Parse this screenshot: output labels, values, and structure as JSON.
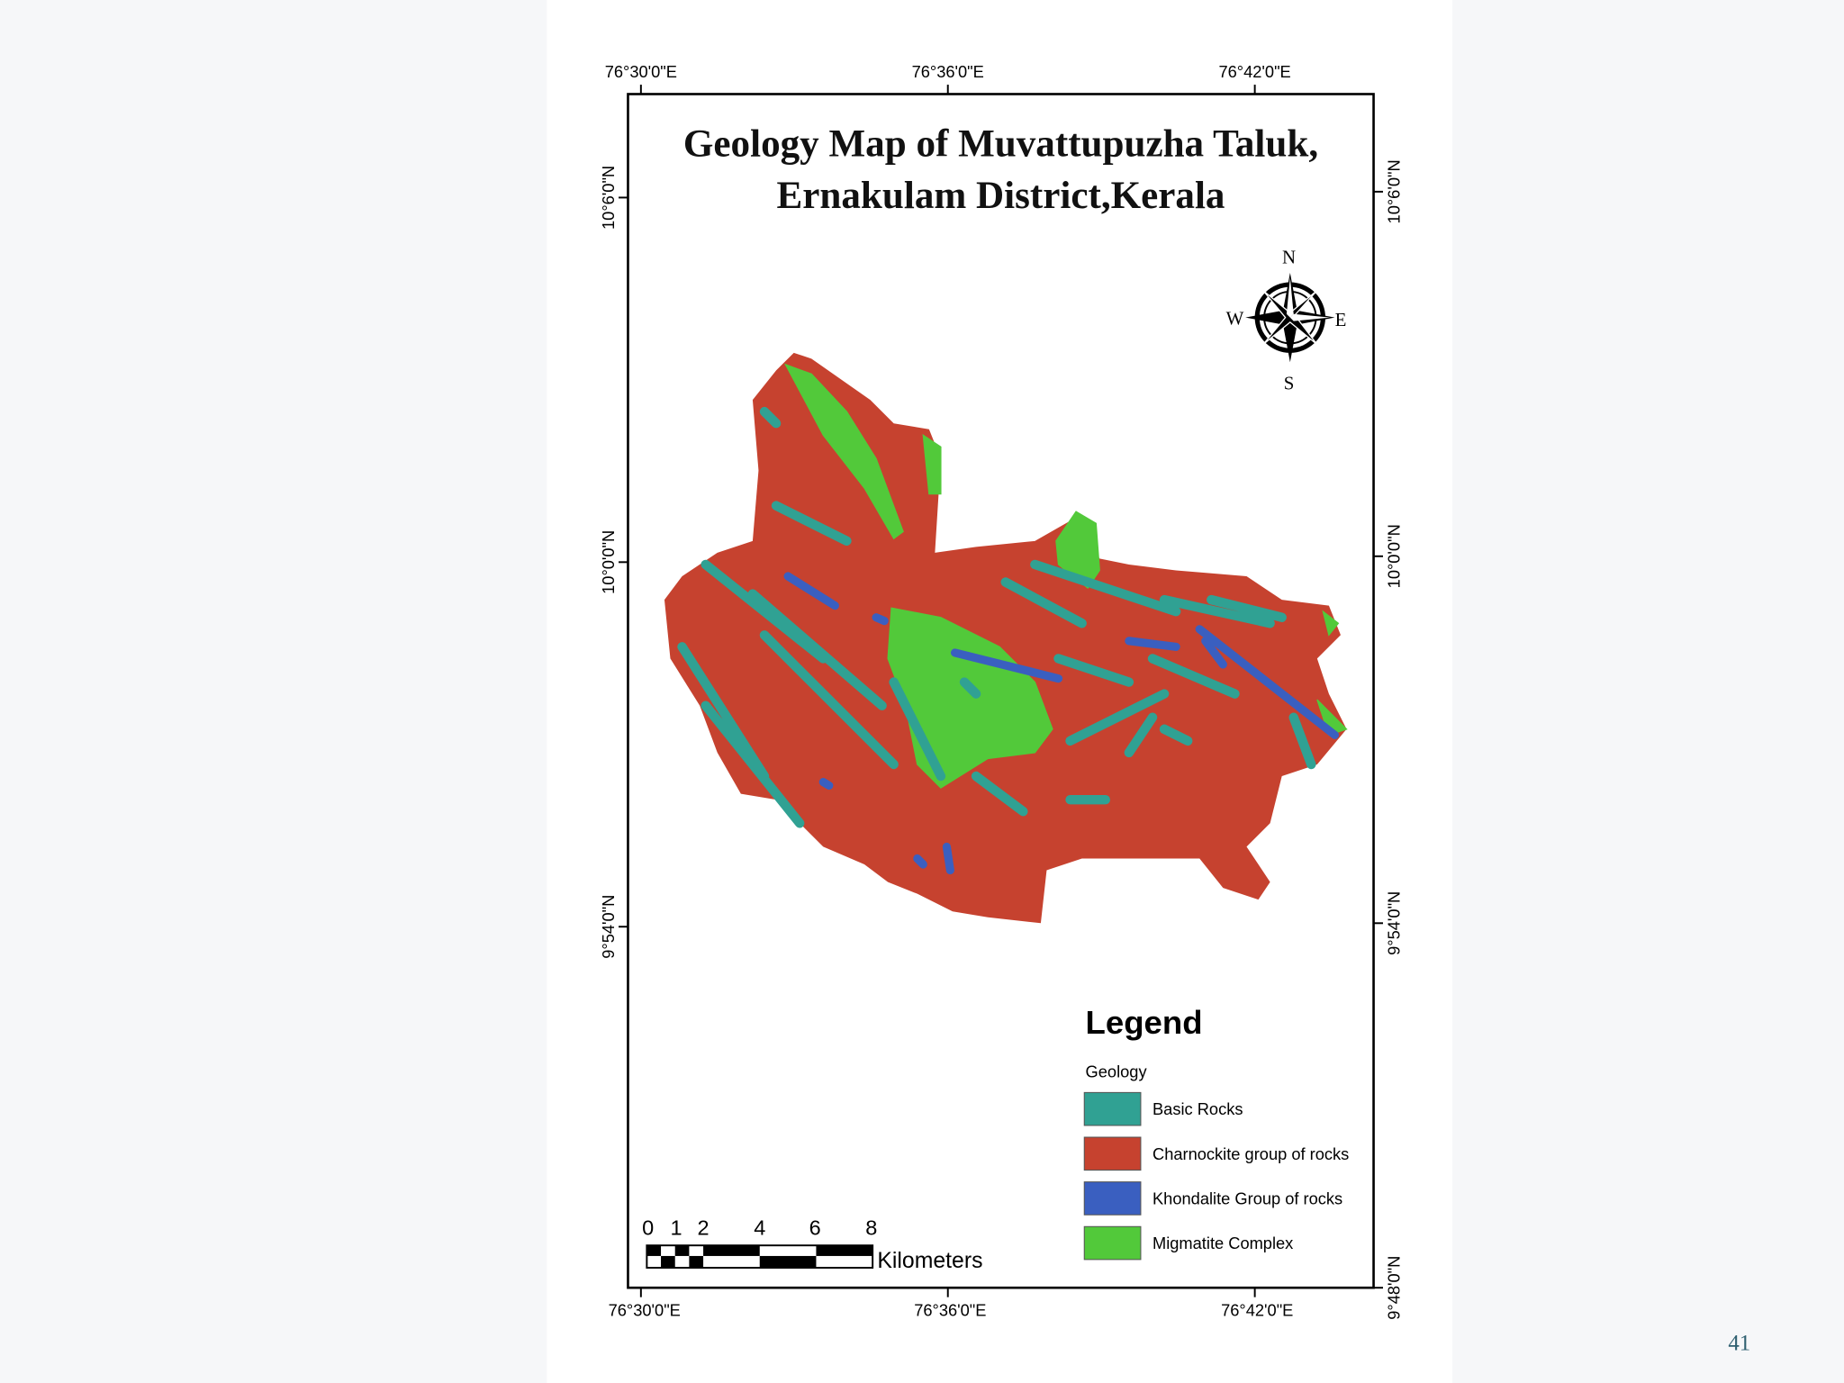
{
  "title": [
    "Geology Map of Muvattupuzha Taluk,",
    "Ernakulam District,Kerala"
  ],
  "longitude_labels_top": [
    "76°30'0\"E",
    "76°36'0\"E",
    "76°42'0\"E"
  ],
  "longitude_labels_bottom": [
    "76°30'0\"E",
    "76°36'0\"E",
    "76°42'0\"E"
  ],
  "latitude_labels_left": [
    "10°6'0\"N",
    "10°0'0\"N",
    "9°54'0\"N"
  ],
  "latitude_labels_right": [
    "10°6'0\"N",
    "10°0'0\"N",
    "9°54'0\"N",
    "9°48'0\"N"
  ],
  "compass": {
    "north": "N",
    "east": "E",
    "south": "S",
    "west": "W"
  },
  "legend": {
    "title": "Legend",
    "subtitle": "Geology",
    "items": [
      {
        "label": "Basic Rocks",
        "color": "#30a193"
      },
      {
        "label": "Charnockite group of rocks",
        "color": "#c6422f"
      },
      {
        "label": "Khondalite Group of rocks",
        "color": "#3a5fc0"
      },
      {
        "label": "Migmatite Complex",
        "color": "#52c93a"
      }
    ]
  },
  "scale_bar": {
    "ticks": [
      "0",
      "1",
      "2",
      "4",
      "6",
      "8"
    ],
    "unit": "Kilometers"
  },
  "page_number": "41"
}
